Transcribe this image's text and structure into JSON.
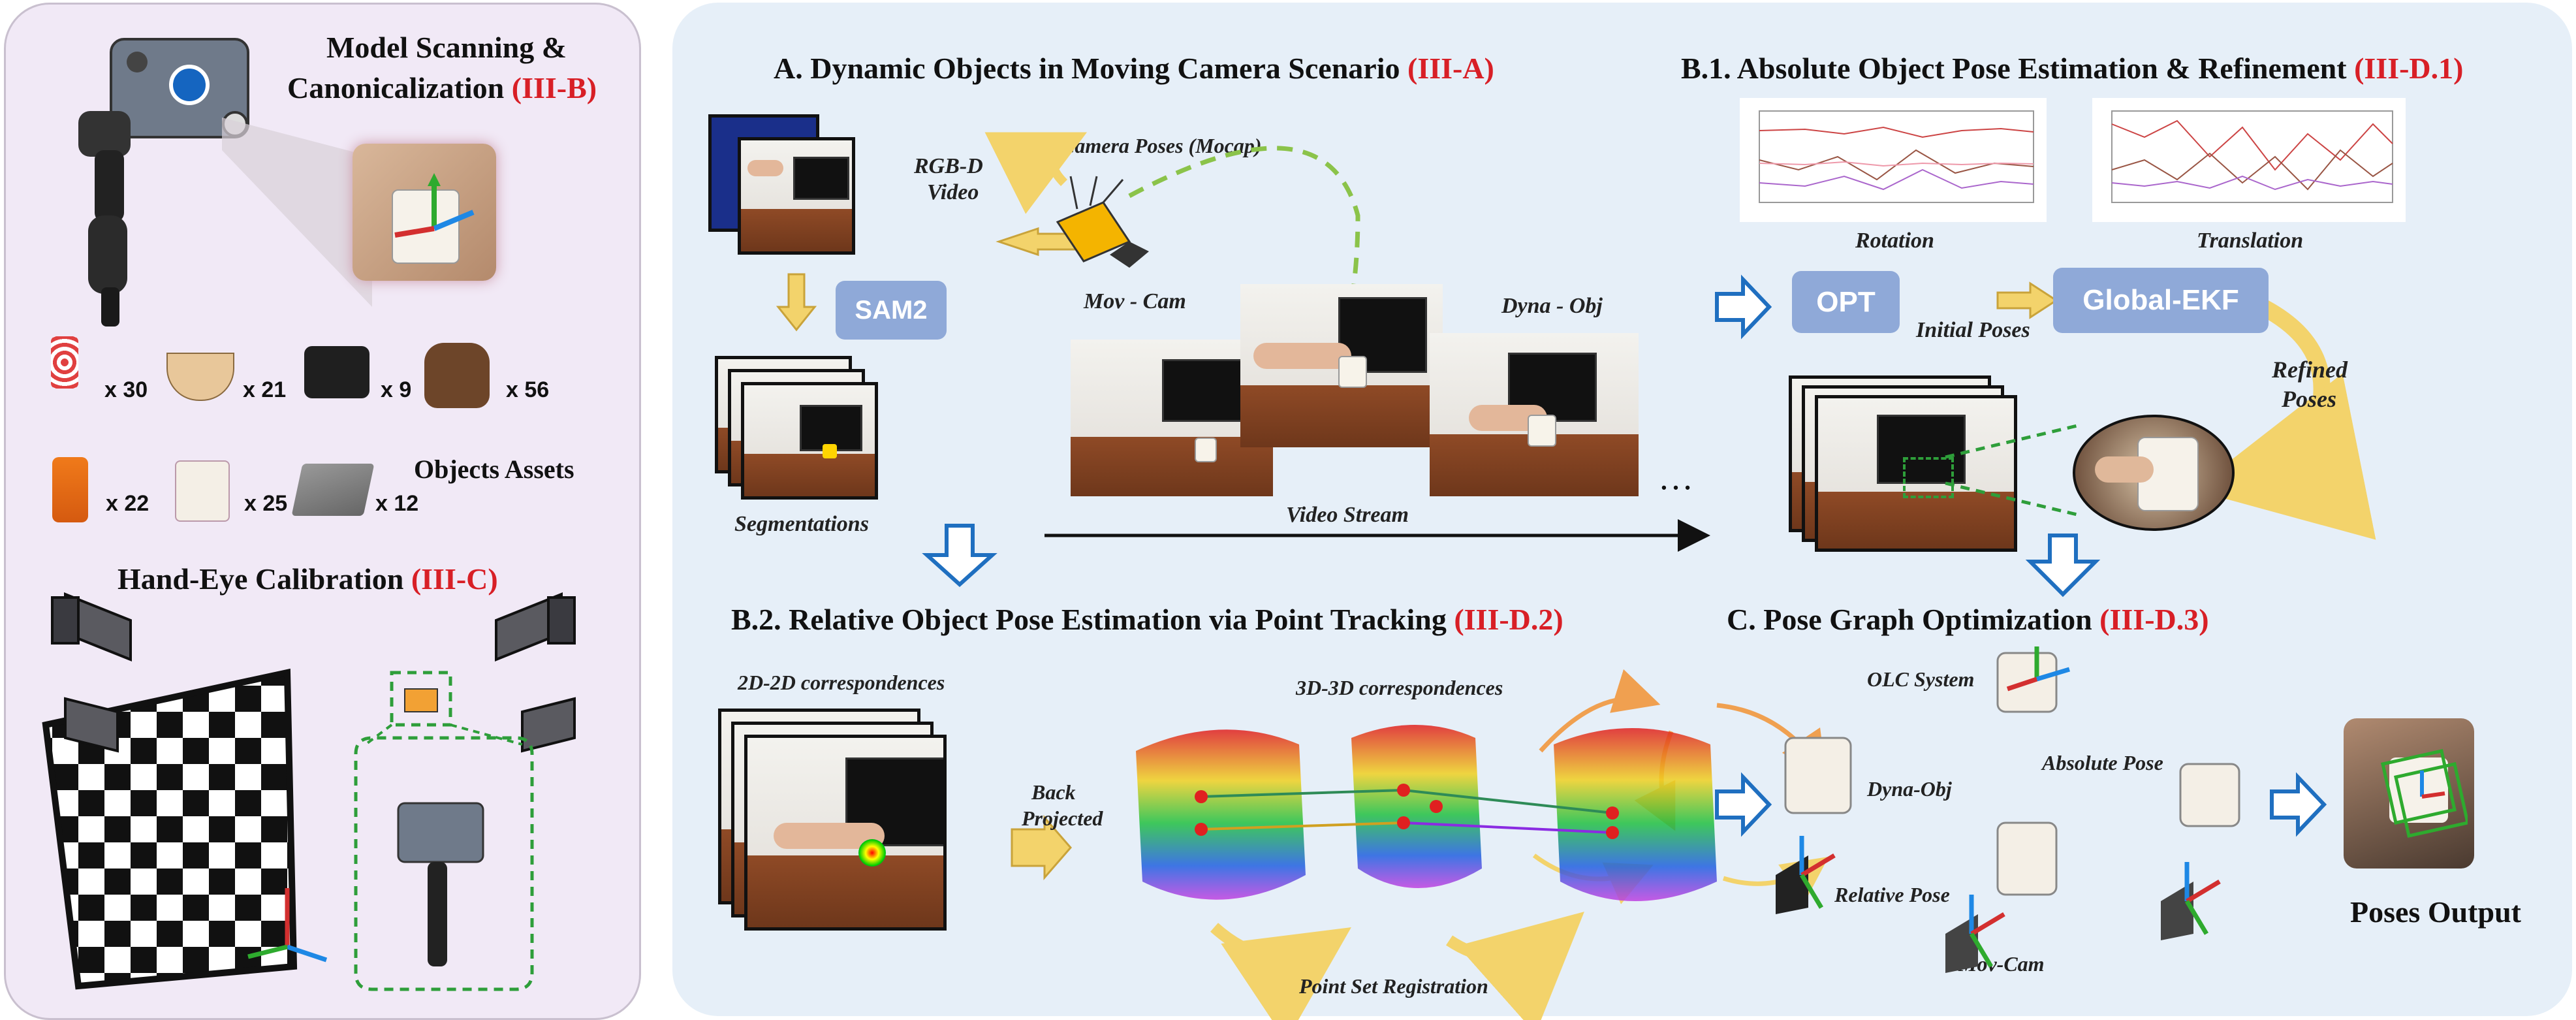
{
  "left": {
    "title1": "Model Scanning &",
    "title2": "Canonicalization",
    "title2_ref": "(III-B)",
    "counts": [
      "x 30",
      "x 21",
      "x 9",
      "x 56",
      "x 22",
      "x 25",
      "x 12"
    ],
    "assets_label": "Objects Assets",
    "calib_title": "Hand-Eye Calibration",
    "calib_ref": "(III-C)"
  },
  "sectionA": {
    "title": "A. Dynamic Objects in Moving Camera Scenario",
    "ref": "(III-A)",
    "rgbd": "RGB-D",
    "video": "Video",
    "camera_poses": "Camera Poses (Mocap)",
    "movcam": "Mov - Cam",
    "sam2": "SAM2",
    "dynaobj": "Dyna - Obj",
    "segmentations": "Segmentations",
    "video_stream": "Video Stream",
    "ellipsis": "…"
  },
  "sectionB1": {
    "title": "B.1. Absolute Object Pose Estimation & Refinement",
    "ref": "(III-D.1)",
    "rotation": "Rotation",
    "translation": "Translation",
    "opt": "OPT",
    "global_ekf": "Global-EKF",
    "initial_poses": "Initial Poses",
    "refined": "Refined",
    "poses": "Poses"
  },
  "sectionB2": {
    "title": "B.2. Relative Object Pose Estimation via Point Tracking",
    "ref": "(III-D.2)",
    "corr2d": "2D-2D correspondences",
    "corr3d": "3D-3D correspondences",
    "back": "Back",
    "projected": "Projected",
    "registration": "Point Set Registration"
  },
  "sectionC": {
    "title": "C. Pose Graph Optimization",
    "ref": "(III-D.3)",
    "olc": "OLC System",
    "absolute_pose": "Absolute Pose",
    "dynaobj": "Dyna-Obj",
    "relative_pose": "Relative Pose",
    "movcam": "Mov-Cam",
    "output": "Poses Output"
  },
  "colors": {
    "accent_red": "#d81f26",
    "arrow_blue": "#1f6fc0",
    "arrow_yellow": "#f3d36b",
    "dashed_green": "#8bc34a",
    "box_blue": "#8fa9d8",
    "edge_orange": "#f0a050"
  }
}
